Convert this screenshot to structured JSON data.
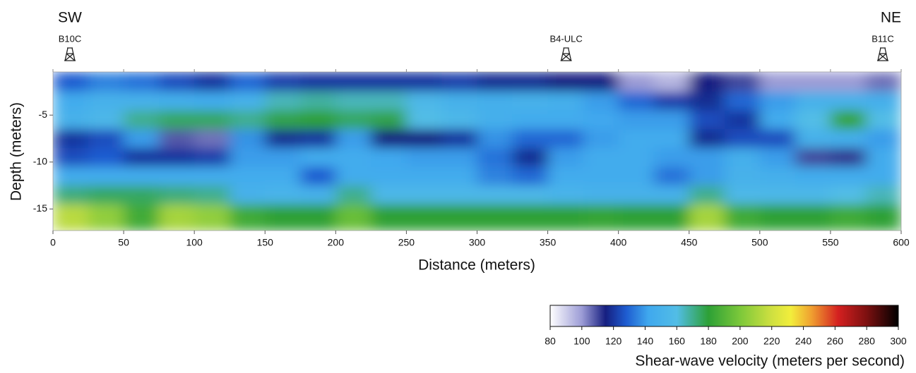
{
  "chart_data": {
    "type": "heatmap",
    "side_labels": [
      "SW",
      "NE"
    ],
    "boreholes": [
      {
        "label": "B10C",
        "distance": 12
      },
      {
        "label": "B4-ULC",
        "distance": 363
      },
      {
        "label": "B11C",
        "distance": 587
      }
    ],
    "x_label": "Distance (meters)",
    "y_label": "Depth (meters)",
    "x": [
      12.5,
      37.5,
      62.5,
      87.5,
      112.5,
      137.5,
      162.5,
      187.5,
      212.5,
      237.5,
      262.5,
      287.5,
      312.5,
      337.5,
      362.5,
      387.5,
      412.5,
      437.5,
      462.5,
      487.5,
      512.5,
      537.5,
      562.5,
      587.5
    ],
    "depth": [
      -1.5,
      -3.5,
      -5.5,
      -7.5,
      -9.5,
      -11.5,
      -13.5,
      -15.5
    ],
    "values": [
      [
        128,
        135,
        132,
        125,
        120,
        130,
        122,
        120,
        120,
        120,
        120,
        122,
        118,
        118,
        115,
        115,
        100,
        95,
        115,
        110,
        100,
        100,
        100,
        105
      ],
      [
        145,
        150,
        150,
        148,
        145,
        150,
        165,
        168,
        165,
        165,
        155,
        150,
        148,
        150,
        148,
        140,
        130,
        122,
        118,
        130,
        140,
        150,
        150,
        148
      ],
      [
        150,
        155,
        170,
        175,
        175,
        170,
        178,
        180,
        175,
        178,
        160,
        155,
        148,
        145,
        145,
        142,
        140,
        140,
        125,
        120,
        145,
        160,
        182,
        160
      ],
      [
        120,
        125,
        140,
        108,
        105,
        138,
        118,
        120,
        140,
        115,
        115,
        120,
        138,
        130,
        130,
        140,
        145,
        145,
        118,
        125,
        125,
        150,
        148,
        140
      ],
      [
        125,
        128,
        120,
        120,
        122,
        140,
        140,
        145,
        145,
        142,
        140,
        140,
        132,
        118,
        140,
        145,
        145,
        140,
        140,
        148,
        140,
        110,
        112,
        145
      ],
      [
        145,
        145,
        145,
        145,
        145,
        145,
        145,
        128,
        145,
        145,
        145,
        145,
        135,
        130,
        145,
        145,
        145,
        132,
        140,
        150,
        148,
        145,
        145,
        145
      ],
      [
        172,
        175,
        175,
        172,
        170,
        150,
        152,
        150,
        170,
        155,
        155,
        155,
        155,
        155,
        152,
        150,
        150,
        150,
        170,
        155,
        155,
        155,
        160,
        165
      ],
      [
        215,
        205,
        185,
        210,
        205,
        185,
        180,
        180,
        195,
        180,
        180,
        180,
        180,
        180,
        180,
        182,
        180,
        180,
        210,
        185,
        180,
        180,
        185,
        180
      ]
    ],
    "xlim": [
      0,
      600
    ],
    "xticks": [
      0,
      50,
      100,
      150,
      200,
      250,
      300,
      350,
      400,
      450,
      500,
      550,
      600
    ],
    "ylim": [
      -17.3,
      -0.4
    ],
    "yticks": [
      -5,
      -10,
      -15
    ],
    "colorbar_title": "Shear-wave velocity (meters per second)",
    "colorbar_lim": [
      80,
      300
    ],
    "colorbar_ticks": [
      80,
      100,
      120,
      140,
      160,
      180,
      200,
      220,
      240,
      260,
      280,
      300
    ],
    "colorscale": [
      [
        80,
        "#ffffff"
      ],
      [
        100,
        "#9c9cd6"
      ],
      [
        115,
        "#161f80"
      ],
      [
        128,
        "#1e5cd0"
      ],
      [
        142,
        "#3fa8ee"
      ],
      [
        160,
        "#52bde6"
      ],
      [
        180,
        "#2da036"
      ],
      [
        200,
        "#7cc83a"
      ],
      [
        220,
        "#cfe040"
      ],
      [
        232,
        "#f2ee3c"
      ],
      [
        245,
        "#f0a030"
      ],
      [
        262,
        "#d42020"
      ],
      [
        280,
        "#7c1010"
      ],
      [
        300,
        "#000000"
      ]
    ]
  }
}
